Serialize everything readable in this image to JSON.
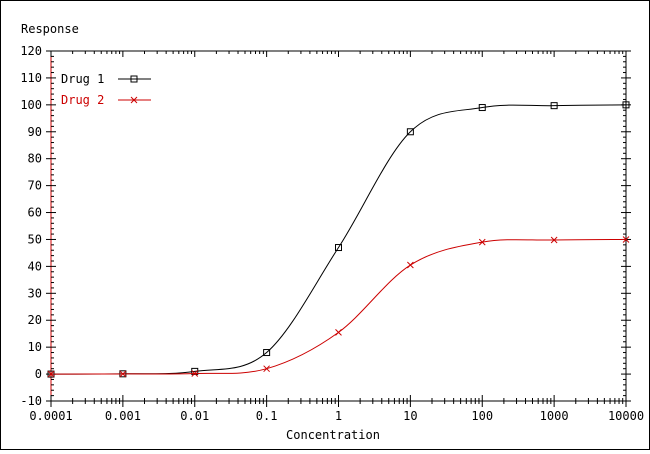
{
  "chart_data": {
    "type": "line",
    "title": "",
    "ylabel": "Response",
    "xlabel": "Concentration",
    "xscale": "log",
    "xlim": [
      0.0001,
      10000
    ],
    "ylim": [
      -10,
      120
    ],
    "x_tick_labels": [
      "0.0001",
      "0.001",
      "0.01",
      "0.1",
      "1",
      "10",
      "100",
      "1000",
      "10000"
    ],
    "y_ticks": [
      -10,
      0,
      10,
      20,
      30,
      40,
      50,
      60,
      70,
      80,
      90,
      100,
      110,
      120
    ],
    "grid": false,
    "legend": "top-left",
    "series": [
      {
        "name": "Drug 1",
        "color": "#000000",
        "marker": "square",
        "x": [
          0.0001,
          0.001,
          0.01,
          0.1,
          1,
          10,
          100,
          1000,
          10000
        ],
        "y": [
          0,
          0.1,
          1,
          8,
          47,
          90,
          99,
          99.7,
          100
        ]
      },
      {
        "name": "Drug 2",
        "color": "#cc0000",
        "marker": "x",
        "x": [
          0.0001,
          0.001,
          0.01,
          0.1,
          1,
          10,
          100,
          1000,
          10000
        ],
        "y": [
          0,
          0.05,
          0.2,
          2,
          15.5,
          40.5,
          49,
          49.8,
          50
        ]
      }
    ]
  }
}
